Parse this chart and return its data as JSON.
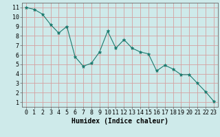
{
  "x": [
    0,
    1,
    2,
    3,
    4,
    5,
    6,
    7,
    8,
    9,
    10,
    11,
    12,
    13,
    14,
    15,
    16,
    17,
    18,
    19,
    20,
    21,
    22,
    23
  ],
  "y": [
    11,
    10.8,
    10.3,
    9.2,
    8.3,
    9.0,
    5.8,
    4.8,
    5.1,
    6.3,
    8.5,
    6.7,
    7.6,
    6.7,
    6.3,
    6.1,
    4.3,
    4.9,
    4.5,
    3.9,
    3.9,
    3.0,
    2.1,
    1.1
  ],
  "line_color": "#1a7a6e",
  "marker": "*",
  "marker_size": 3.5,
  "bg_color": "#ceeaea",
  "grid_color": "#d4a0a0",
  "xlabel": "Humidex (Indice chaleur)",
  "xlim": [
    -0.5,
    23.5
  ],
  "ylim": [
    0.5,
    11.5
  ],
  "xticks": [
    0,
    1,
    2,
    3,
    4,
    5,
    6,
    7,
    8,
    9,
    10,
    11,
    12,
    13,
    14,
    15,
    16,
    17,
    18,
    19,
    20,
    21,
    22,
    23
  ],
  "yticks": [
    1,
    2,
    3,
    4,
    5,
    6,
    7,
    8,
    9,
    10,
    11
  ],
  "fontsize_label": 7,
  "fontsize_tick": 6
}
